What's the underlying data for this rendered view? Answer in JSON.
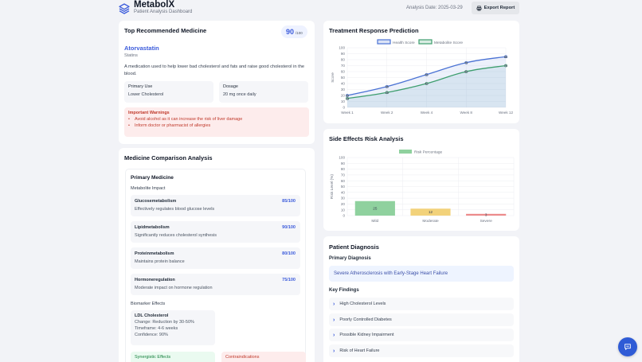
{
  "header": {
    "app_title": "MetabolX",
    "app_subtitle": "Patient Analysis Dashboard",
    "analysis_date": "Analysis Date: 2025-03-29",
    "export_label": "Export Report",
    "logo_icon": "layers-icon",
    "export_icon": "printer-icon"
  },
  "top_medicine": {
    "title": "Top Recommended Medicine",
    "score": "90",
    "score_max": "/100",
    "name": "Atorvastatin",
    "class": "Statins",
    "description": "A medication used to help lower bad cholesterol and fats and raise good cholesterol in the blood.",
    "primary_use_label": "Primary Use",
    "primary_use_value": "Lower Cholesterol",
    "dosage_label": "Dosage",
    "dosage_value": "20 mg once daily",
    "warnings_title": "Important Warnings",
    "warnings": [
      "Avoid alcohol as it can increase the risk of liver damage",
      "Inform doctor or pharmacist of allergies"
    ]
  },
  "comparison": {
    "title": "Medicine Comparison Analysis",
    "primary_medicine_label": "Primary Medicine",
    "metabolite_impact_label": "Metabolite Impact",
    "metabolites": [
      {
        "name": "Glucosemetabolism",
        "desc": "Effectively regulates blood glucose levels",
        "score": "85/100"
      },
      {
        "name": "Lipidmetabolism",
        "desc": "Significantly reduces cholesterol synthesis",
        "score": "90/100"
      },
      {
        "name": "Proteinmetabolism",
        "desc": "Maintains protein balance",
        "score": "80/100"
      },
      {
        "name": "Hormoneregulation",
        "desc": "Moderate impact on hormone regulation",
        "score": "75/100"
      }
    ],
    "biomarker_label": "Biomarker Effects",
    "biomarker": {
      "name": "LDL Cholesterol",
      "change": "Change: Reduction by 30-50%",
      "timeframe": "Timeframe: 4-6 weeks",
      "confidence": "Confidence: 90%"
    },
    "synergistic_label": "Synergistic Effects",
    "contraindications_label": "Contraindications"
  },
  "treatment_chart": {
    "title": "Treatment Response Prediction"
  },
  "risk_chart": {
    "title": "Side Effects Risk Analysis"
  },
  "chart_data": [
    {
      "type": "line",
      "title": "Treatment Response Prediction",
      "categories": [
        "Week 1",
        "Week 2",
        "Week 4",
        "Week 8",
        "Week 12"
      ],
      "series": [
        {
          "name": "Health Score",
          "values": [
            20,
            35,
            55,
            75,
            85
          ],
          "color": "#4a72d4"
        },
        {
          "name": "Metabolite Score",
          "values": [
            15,
            25,
            40,
            60,
            70
          ],
          "color": "#3e9e6e"
        }
      ],
      "xlabel": "",
      "ylabel": "Score",
      "ylim": [
        0,
        100
      ],
      "yticks": [
        0,
        10,
        20,
        30,
        40,
        50,
        60,
        70,
        80,
        90,
        100
      ],
      "legend_position": "top",
      "grid": true
    },
    {
      "type": "bar",
      "title": "Side Effects Risk Analysis",
      "categories": [
        "Mild",
        "Moderate",
        "Severe"
      ],
      "series": [
        {
          "name": "Risk Percentage",
          "values": [
            25,
            12,
            3
          ],
          "colors": [
            "#8fd19e",
            "#f2d27a",
            "#ec8a8a"
          ]
        }
      ],
      "xlabel": "",
      "ylabel": "Risk Level (%)",
      "ylim": [
        0,
        100
      ],
      "yticks": [
        0,
        10,
        20,
        30,
        40,
        50,
        60,
        70,
        80,
        90,
        100
      ],
      "legend_position": "top",
      "grid": true
    }
  ],
  "diagnosis": {
    "title": "Patient Diagnosis",
    "primary_label": "Primary Diagnosis",
    "primary_value": "Severe Atherosclerosis with Early-Stage Heart Failure",
    "key_findings_label": "Key Findings",
    "findings": [
      "High Cholesterol Levels",
      "Poorly Controlled Diabetes",
      "Possible Kidney Impairment",
      "Risk of Heart Failure"
    ]
  },
  "chat_button": {
    "icon": "chat-icon"
  }
}
